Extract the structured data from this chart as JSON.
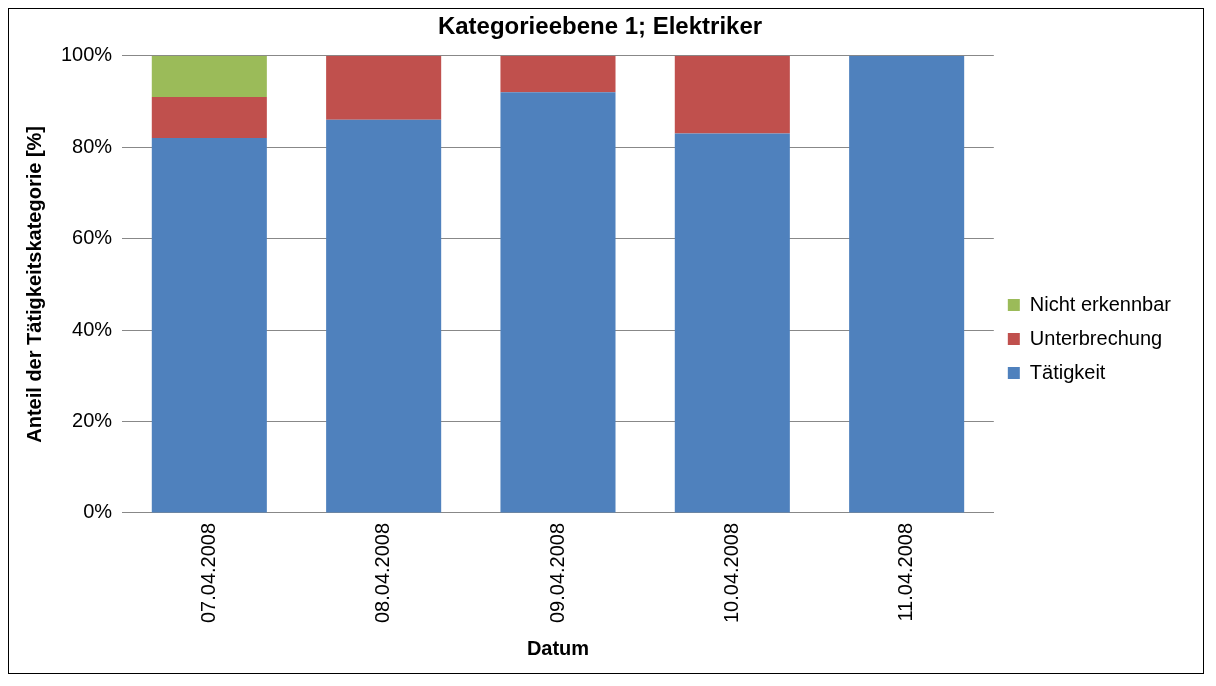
{
  "chart_data": {
    "type": "bar",
    "title": "Kategorieebene 1; Elektriker",
    "xlabel": "Datum",
    "ylabel": "Anteil der Tätigkeitskategorie [%]",
    "categories": [
      "07.04.2008",
      "08.04.2008",
      "09.04.2008",
      "10.04.2008",
      "11.04.2008"
    ],
    "series": [
      {
        "name": "Tätigkeit",
        "color": "#4f81bd",
        "values": [
          82,
          86,
          92,
          83,
          100
        ]
      },
      {
        "name": "Unterbrechung",
        "color": "#c0504d",
        "values": [
          9,
          14,
          8,
          17,
          0
        ]
      },
      {
        "name": "Nicht erkennbar",
        "color": "#9bbb59",
        "values": [
          9,
          0,
          0,
          0,
          0
        ]
      }
    ],
    "stacked": true,
    "ylim": [
      0,
      100
    ],
    "yticks": [
      {
        "value": 0,
        "label": "0%"
      },
      {
        "value": 20,
        "label": "20%"
      },
      {
        "value": 40,
        "label": "40%"
      },
      {
        "value": 60,
        "label": "60%"
      },
      {
        "value": 80,
        "label": "80%"
      },
      {
        "value": 100,
        "label": "100%"
      }
    ],
    "grid": "y",
    "legend": "right"
  }
}
